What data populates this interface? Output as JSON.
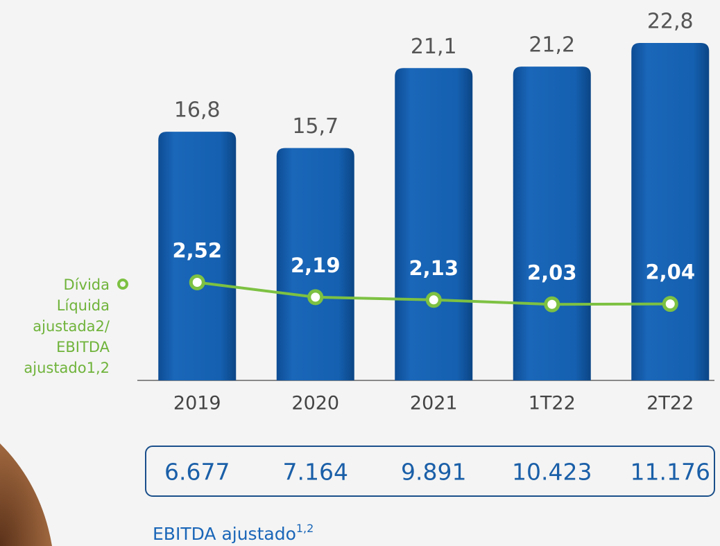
{
  "chart_data": {
    "type": "bar",
    "categories": [
      "2019",
      "2020",
      "2021",
      "1T22",
      "2T22"
    ],
    "series": [
      {
        "type": "bar",
        "color": "#1560b0",
        "values": [
          16.8,
          15.7,
          21.1,
          21.2,
          22.8
        ],
        "value_labels": [
          "16,8",
          "15,7",
          "21,1",
          "21,2",
          "22,8"
        ]
      },
      {
        "type": "line",
        "name": "Dívida Líquida ajustada2/ EBITDA ajustado1,2",
        "color": "#7dc142",
        "axis": "y2",
        "values": [
          2.52,
          2.19,
          2.13,
          2.03,
          2.04
        ],
        "value_labels": [
          "2,52",
          "2,19",
          "2,13",
          "2,03",
          "2,04"
        ]
      }
    ],
    "ylim": [
      0,
      25.7
    ],
    "y2lim": [
      0,
      8.8
    ],
    "table": {
      "values": [
        6677,
        7164,
        9891,
        10423,
        11176
      ],
      "value_labels": [
        "6.677",
        "7.164",
        "9.891",
        "10.423",
        "11.176"
      ]
    },
    "footnote": {
      "text": "EBITDA ajustado",
      "sup": "1,2"
    }
  }
}
